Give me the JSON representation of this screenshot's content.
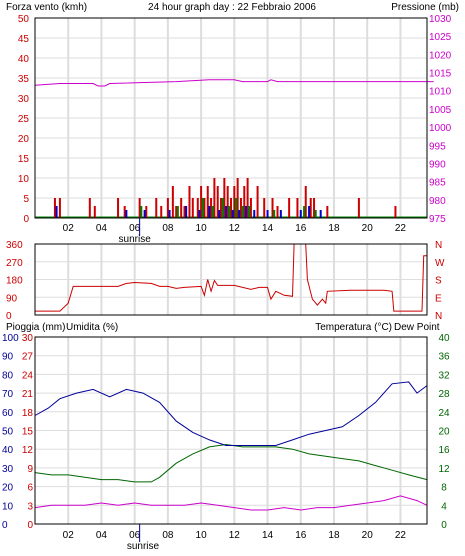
{
  "header": {
    "left_label": "Forza vento (kmh)",
    "title": "24 hour graph day : 22 Febbraio 2006",
    "right_label": "Pressione (mb)"
  },
  "bottom_header": {
    "rain_label": "Pioggia (mm)",
    "humidity_label": "Umidita (%)",
    "temp_label": "Temperatura (°C)",
    "dew_label": "Dew Point"
  },
  "sunrise_label": "sunrise",
  "hour_labels": [
    "02",
    "04",
    "06",
    "08",
    "10",
    "12",
    "14",
    "16",
    "18",
    "20",
    "22"
  ],
  "colors": {
    "pressure": "#cc00cc",
    "wind": "#cc0000",
    "wind_gust": "#0000cc",
    "wind_green": "#008000",
    "direction": "#cc0000",
    "humidity": "#000099",
    "temperature": "#006600",
    "dewpoint": "#cc00cc",
    "rain": "#cc0000",
    "grid": "#dddddd"
  },
  "chart_data": [
    {
      "type": "line",
      "name": "wind-pressure",
      "x_unit": "hour",
      "left_axis": {
        "ticks": [
          0,
          5,
          10,
          15,
          20,
          25,
          30,
          35,
          40,
          45,
          50
        ],
        "range": [
          0,
          50
        ]
      },
      "right_axis": {
        "ticks": [
          975,
          980,
          985,
          990,
          995,
          1000,
          1005,
          1010,
          1015,
          1020,
          1025,
          1030
        ],
        "range": [
          975,
          1030
        ]
      },
      "pressure": [
        [
          0,
          1011.5
        ],
        [
          1.5,
          1012
        ],
        [
          3.5,
          1012
        ],
        [
          3.8,
          1011.3
        ],
        [
          4.2,
          1011.3
        ],
        [
          4.5,
          1012
        ],
        [
          8.5,
          1012.5
        ],
        [
          10.5,
          1013
        ],
        [
          12,
          1013
        ],
        [
          12.5,
          1012.5
        ],
        [
          14,
          1012.5
        ],
        [
          14.2,
          1013
        ],
        [
          14.6,
          1012.5
        ],
        [
          17,
          1012.5
        ],
        [
          24,
          1012.5
        ]
      ],
      "wind_bars": [
        {
          "x": 1.2,
          "v": 5
        },
        {
          "x": 1.5,
          "v": 5
        },
        {
          "x": 3.3,
          "v": 5
        },
        {
          "x": 3.6,
          "v": 3
        },
        {
          "x": 5.0,
          "v": 5
        },
        {
          "x": 5.4,
          "v": 3
        },
        {
          "x": 6.3,
          "v": 5
        },
        {
          "x": 6.7,
          "v": 3
        },
        {
          "x": 7.3,
          "v": 5
        },
        {
          "x": 7.6,
          "v": 3
        },
        {
          "x": 8.0,
          "v": 5
        },
        {
          "x": 8.3,
          "v": 8
        },
        {
          "x": 8.5,
          "v": 3
        },
        {
          "x": 8.8,
          "v": 5
        },
        {
          "x": 9.0,
          "v": 3
        },
        {
          "x": 9.3,
          "v": 8
        },
        {
          "x": 9.5,
          "v": 5
        },
        {
          "x": 9.8,
          "v": 5
        },
        {
          "x": 10.0,
          "v": 8
        },
        {
          "x": 10.2,
          "v": 5
        },
        {
          "x": 10.4,
          "v": 8
        },
        {
          "x": 10.6,
          "v": 5
        },
        {
          "x": 10.8,
          "v": 10
        },
        {
          "x": 11.0,
          "v": 8
        },
        {
          "x": 11.2,
          "v": 5
        },
        {
          "x": 11.4,
          "v": 10
        },
        {
          "x": 11.6,
          "v": 8
        },
        {
          "x": 11.8,
          "v": 5
        },
        {
          "x": 12.0,
          "v": 8
        },
        {
          "x": 12.2,
          "v": 10
        },
        {
          "x": 12.4,
          "v": 5
        },
        {
          "x": 12.6,
          "v": 8
        },
        {
          "x": 12.8,
          "v": 10
        },
        {
          "x": 13.0,
          "v": 5
        },
        {
          "x": 13.4,
          "v": 8
        },
        {
          "x": 13.8,
          "v": 5
        },
        {
          "x": 14.3,
          "v": 5
        },
        {
          "x": 14.6,
          "v": 3
        },
        {
          "x": 15.3,
          "v": 5
        },
        {
          "x": 15.8,
          "v": 5
        },
        {
          "x": 16.3,
          "v": 8
        },
        {
          "x": 16.6,
          "v": 5
        },
        {
          "x": 16.8,
          "v": 5
        },
        {
          "x": 17.6,
          "v": 3
        },
        {
          "x": 19.5,
          "v": 5
        },
        {
          "x": 21.7,
          "v": 3
        }
      ],
      "gust_bars": [
        {
          "x": 1.3,
          "v": 3
        },
        {
          "x": 5.5,
          "v": 2
        },
        {
          "x": 6.6,
          "v": 2
        },
        {
          "x": 8.1,
          "v": 2
        },
        {
          "x": 9.1,
          "v": 3
        },
        {
          "x": 9.9,
          "v": 2
        },
        {
          "x": 10.5,
          "v": 3
        },
        {
          "x": 11.1,
          "v": 2
        },
        {
          "x": 11.5,
          "v": 3
        },
        {
          "x": 11.9,
          "v": 2
        },
        {
          "x": 12.3,
          "v": 2
        },
        {
          "x": 12.7,
          "v": 3
        },
        {
          "x": 13.2,
          "v": 2
        },
        {
          "x": 14.0,
          "v": 2
        },
        {
          "x": 14.8,
          "v": 2
        },
        {
          "x": 16.0,
          "v": 2
        },
        {
          "x": 16.5,
          "v": 3
        },
        {
          "x": 17.2,
          "v": 2
        }
      ],
      "green_bars": [
        {
          "x": 6.4,
          "v": 3
        },
        {
          "x": 8.6,
          "v": 3
        },
        {
          "x": 10.1,
          "v": 5
        },
        {
          "x": 10.7,
          "v": 3
        },
        {
          "x": 11.3,
          "v": 5
        },
        {
          "x": 11.7,
          "v": 3
        },
        {
          "x": 12.1,
          "v": 5
        },
        {
          "x": 12.5,
          "v": 3
        },
        {
          "x": 12.9,
          "v": 3
        },
        {
          "x": 14.4,
          "v": 2
        },
        {
          "x": 16.2,
          "v": 3
        },
        {
          "x": 16.9,
          "v": 2
        }
      ]
    },
    {
      "type": "line",
      "name": "wind-direction",
      "x_unit": "hour",
      "left_axis": {
        "ticks": [
          0,
          90,
          180,
          270,
          360
        ],
        "range": [
          0,
          360
        ]
      },
      "right_labels": [
        "N",
        "W",
        "S",
        "E",
        "N"
      ],
      "direction": [
        [
          0,
          20
        ],
        [
          0.5,
          20
        ],
        [
          1.5,
          20
        ],
        [
          2.0,
          60
        ],
        [
          2.3,
          145
        ],
        [
          3,
          145
        ],
        [
          4,
          145
        ],
        [
          5,
          145
        ],
        [
          5.5,
          160
        ],
        [
          6,
          165
        ],
        [
          7,
          160
        ],
        [
          7.5,
          145
        ],
        [
          8,
          145
        ],
        [
          8.5,
          135
        ],
        [
          9,
          140
        ],
        [
          10,
          145
        ],
        [
          10.2,
          100
        ],
        [
          10.4,
          180
        ],
        [
          10.6,
          120
        ],
        [
          10.8,
          175
        ],
        [
          11,
          150
        ],
        [
          12,
          150
        ],
        [
          13,
          130
        ],
        [
          13.5,
          140
        ],
        [
          14,
          140
        ],
        [
          14.2,
          80
        ],
        [
          14.5,
          120
        ],
        [
          15,
          100
        ],
        [
          15.5,
          95
        ],
        [
          15.6,
          360
        ],
        [
          16.3,
          360
        ],
        [
          16.4,
          180
        ],
        [
          16.7,
          80
        ],
        [
          17,
          50
        ],
        [
          17.3,
          80
        ],
        [
          17.5,
          60
        ],
        [
          17.6,
          120
        ],
        [
          19,
          125
        ],
        [
          20,
          125
        ],
        [
          21,
          125
        ],
        [
          21.5,
          120
        ],
        [
          21.6,
          20
        ],
        [
          23.3,
          20
        ],
        [
          23.4,
          300
        ],
        [
          23.6,
          300
        ]
      ]
    },
    {
      "type": "line",
      "name": "rain-humidity-temperature",
      "x_unit": "hour",
      "rain_axis": {
        "ticks": [
          0,
          3,
          6,
          9,
          12,
          15,
          18,
          21,
          24,
          27,
          30
        ],
        "range": [
          0,
          30
        ]
      },
      "humidity_axis": {
        "ticks": [
          0,
          10,
          20,
          30,
          40,
          50,
          60,
          70,
          80,
          90,
          100
        ],
        "range": [
          0,
          100
        ]
      },
      "temp_axis": {
        "ticks": [
          0,
          4,
          8,
          12,
          16,
          20,
          24,
          28,
          32,
          36,
          40
        ],
        "range": [
          0,
          40
        ]
      },
      "humidity": [
        [
          0,
          58
        ],
        [
          0.8,
          62
        ],
        [
          1.5,
          67
        ],
        [
          2.5,
          70
        ],
        [
          3.5,
          72
        ],
        [
          4.5,
          68
        ],
        [
          5.5,
          72
        ],
        [
          6.5,
          70
        ],
        [
          7.5,
          65
        ],
        [
          8.5,
          55
        ],
        [
          9.5,
          49
        ],
        [
          10.5,
          45
        ],
        [
          11.5,
          42
        ],
        [
          12.5,
          42
        ],
        [
          13.5,
          42
        ],
        [
          14.5,
          42
        ],
        [
          15.5,
          45
        ],
        [
          16.5,
          48
        ],
        [
          17.5,
          50
        ],
        [
          18.5,
          52
        ],
        [
          19.5,
          58
        ],
        [
          20.5,
          65
        ],
        [
          21.5,
          75
        ],
        [
          22.5,
          76
        ],
        [
          23,
          70
        ],
        [
          23.6,
          74
        ]
      ],
      "temperature": [
        [
          0,
          11
        ],
        [
          1,
          10.5
        ],
        [
          2,
          10.5
        ],
        [
          3,
          10
        ],
        [
          4,
          9.5
        ],
        [
          5,
          9.5
        ],
        [
          6,
          9
        ],
        [
          7,
          9
        ],
        [
          7.5,
          10
        ],
        [
          8.5,
          13
        ],
        [
          9.5,
          15
        ],
        [
          10.5,
          16.5
        ],
        [
          11.5,
          17
        ],
        [
          12.5,
          16.5
        ],
        [
          13.5,
          16.5
        ],
        [
          14.5,
          16.5
        ],
        [
          15.5,
          16
        ],
        [
          16.5,
          15
        ],
        [
          17.5,
          14.5
        ],
        [
          18.5,
          14
        ],
        [
          19.5,
          13.5
        ],
        [
          20.5,
          12.5
        ],
        [
          21.5,
          11.5
        ],
        [
          22.5,
          10.5
        ],
        [
          23.6,
          9.5
        ]
      ],
      "dewpoint": [
        [
          0,
          3.5
        ],
        [
          1,
          4
        ],
        [
          2,
          4
        ],
        [
          3,
          4
        ],
        [
          4,
          4.5
        ],
        [
          5,
          4
        ],
        [
          6,
          4.5
        ],
        [
          7,
          4
        ],
        [
          8,
          4
        ],
        [
          9,
          4
        ],
        [
          10,
          4.5
        ],
        [
          11,
          4
        ],
        [
          12,
          3.5
        ],
        [
          13,
          3
        ],
        [
          14,
          3
        ],
        [
          15,
          3.5
        ],
        [
          16,
          3
        ],
        [
          17,
          3.5
        ],
        [
          18,
          3.5
        ],
        [
          19,
          4
        ],
        [
          20,
          4.5
        ],
        [
          21,
          5
        ],
        [
          22,
          6
        ],
        [
          23,
          5
        ],
        [
          23.6,
          4
        ]
      ],
      "rain": [
        [
          0,
          0
        ],
        [
          23.6,
          0
        ]
      ]
    }
  ]
}
